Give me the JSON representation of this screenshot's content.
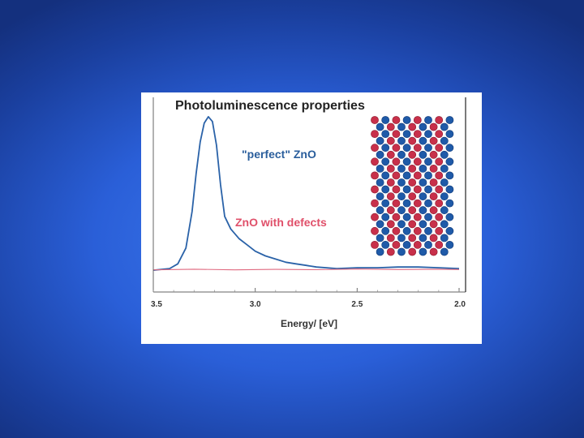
{
  "chart_data": {
    "type": "line",
    "title": "Photoluminescence properties",
    "xlabel": "Energy/ [eV]",
    "ylabel": "",
    "xlim": [
      3.5,
      2.0
    ],
    "x_reversed": true,
    "ylim": [
      0,
      1
    ],
    "x_ticks": [
      3.5,
      3.0,
      2.5,
      2.0
    ],
    "x_tick_labels": [
      "3.5",
      "3.0",
      "2.5",
      "2.0"
    ],
    "grid": false,
    "legend": "none",
    "annotations": [
      {
        "text": "\"perfect\" ZnO",
        "color": "#2a5e9c"
      },
      {
        "text": "ZnO with defects",
        "color": "#e0506a"
      }
    ],
    "series": [
      {
        "color": "#2a62a8",
        "x": [
          3.5,
          3.42,
          3.38,
          3.34,
          3.31,
          3.29,
          3.27,
          3.25,
          3.23,
          3.21,
          3.19,
          3.17,
          3.15,
          3.12,
          3.08,
          3.04,
          3.0,
          2.95,
          2.9,
          2.85,
          2.8,
          2.75,
          2.7,
          2.6,
          2.5,
          2.4,
          2.3,
          2.2,
          2.1,
          2.0
        ],
        "y": [
          0.01,
          0.02,
          0.05,
          0.15,
          0.38,
          0.62,
          0.82,
          0.94,
          0.98,
          0.95,
          0.8,
          0.55,
          0.35,
          0.27,
          0.21,
          0.17,
          0.13,
          0.1,
          0.08,
          0.06,
          0.05,
          0.04,
          0.03,
          0.02,
          0.025,
          0.025,
          0.03,
          0.03,
          0.025,
          0.02
        ]
      },
      {
        "color": "#e06a80",
        "x": [
          3.5,
          3.3,
          3.1,
          2.9,
          2.7,
          2.5,
          2.3,
          2.1,
          2.0
        ],
        "y": [
          0.012,
          0.016,
          0.012,
          0.015,
          0.013,
          0.017,
          0.014,
          0.016,
          0.014
        ]
      }
    ]
  },
  "colors": {
    "atom_red": "#c8304a",
    "atom_blue": "#1f5aa8"
  },
  "inset": {
    "icon": "zno-crystal-lattice-icon"
  }
}
